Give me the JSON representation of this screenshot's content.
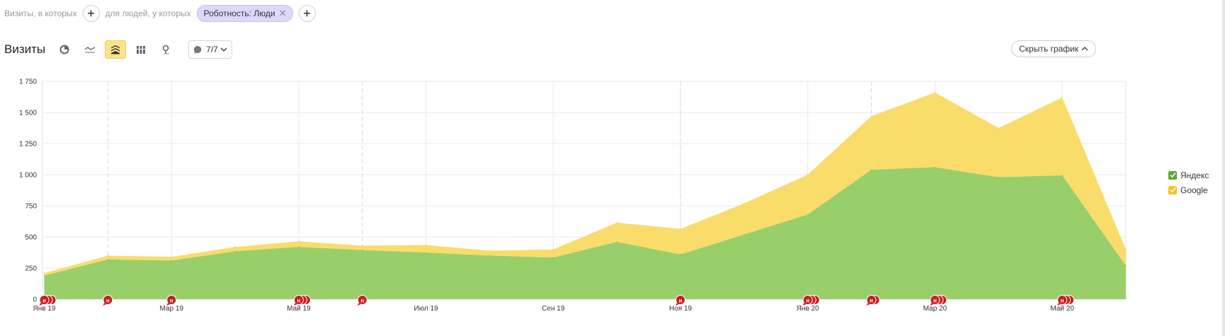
{
  "filters": {
    "visits_text": "Визиты, в которых",
    "people_text": "для людей, у которых",
    "chip_label": "Роботность: Люди"
  },
  "toolbar": {
    "title": "Визиты",
    "annotations_label": "7/7",
    "hide_chart_label": "Скрыть график"
  },
  "colors": {
    "yandex": "#99cf6a",
    "google": "#fadc6b",
    "marker": "#cc1d1d"
  },
  "chart_data": {
    "type": "area",
    "stacked": true,
    "ylim": [
      0,
      1750
    ],
    "yticks": [
      "0",
      "250",
      "500",
      "750",
      "1 000",
      "1 250",
      "1 500",
      "1 750"
    ],
    "ytick_values": [
      0,
      250,
      500,
      750,
      1000,
      1250,
      1500,
      1750
    ],
    "x_months": [
      "2019-01",
      "2019-02",
      "2019-03",
      "2019-04",
      "2019-05",
      "2019-06",
      "2019-07",
      "2019-08",
      "2019-09",
      "2019-10",
      "2019-11",
      "2019-12",
      "2020-01",
      "2020-02",
      "2020-03",
      "2020-04",
      "2020-05",
      "2020-06"
    ],
    "xtick_labels": [
      {
        "month": "2019-01",
        "label": "Янв 19"
      },
      {
        "month": "2019-03",
        "label": "Мар 19"
      },
      {
        "month": "2019-05",
        "label": "Май 19"
      },
      {
        "month": "2019-07",
        "label": "Июл 19"
      },
      {
        "month": "2019-09",
        "label": "Сен 19"
      },
      {
        "month": "2019-11",
        "label": "Ноя 19"
      },
      {
        "month": "2020-01",
        "label": "Янв 20"
      },
      {
        "month": "2020-03",
        "label": "Мар 20"
      },
      {
        "month": "2020-05",
        "label": "Май 20"
      }
    ],
    "dashed_gridlines": [
      "2019-02",
      "2019-06",
      "2019-11",
      "2020-02"
    ],
    "series": [
      {
        "name": "Яндекс",
        "values": [
          190,
          320,
          310,
          385,
          420,
          395,
          375,
          350,
          335,
          460,
          360,
          520,
          680,
          1040,
          1060,
          980,
          995,
          270
        ]
      },
      {
        "name": "Google",
        "values": [
          20,
          30,
          30,
          35,
          45,
          35,
          60,
          40,
          65,
          155,
          205,
          250,
          320,
          430,
          600,
          395,
          625,
          130
        ]
      }
    ],
    "event_markers": [
      {
        "month": "2019-01",
        "count": 3,
        "label": "н"
      },
      {
        "month": "2019-02",
        "count": 1,
        "label": "н"
      },
      {
        "month": "2019-03",
        "count": 1,
        "label": "н"
      },
      {
        "month": "2019-05",
        "count": 3,
        "label": "н"
      },
      {
        "month": "2019-06",
        "count": 1,
        "label": "н"
      },
      {
        "month": "2019-11",
        "count": 1,
        "label": "н"
      },
      {
        "month": "2020-01",
        "count": 3,
        "label": "н"
      },
      {
        "month": "2020-02",
        "count": 2,
        "label": "н"
      },
      {
        "month": "2020-03",
        "count": 3,
        "label": "н"
      },
      {
        "month": "2020-05",
        "count": 3,
        "label": "н"
      }
    ],
    "legend": {
      "position": "right",
      "entries": [
        "Яндекс",
        "Google"
      ]
    },
    "grid": true
  }
}
